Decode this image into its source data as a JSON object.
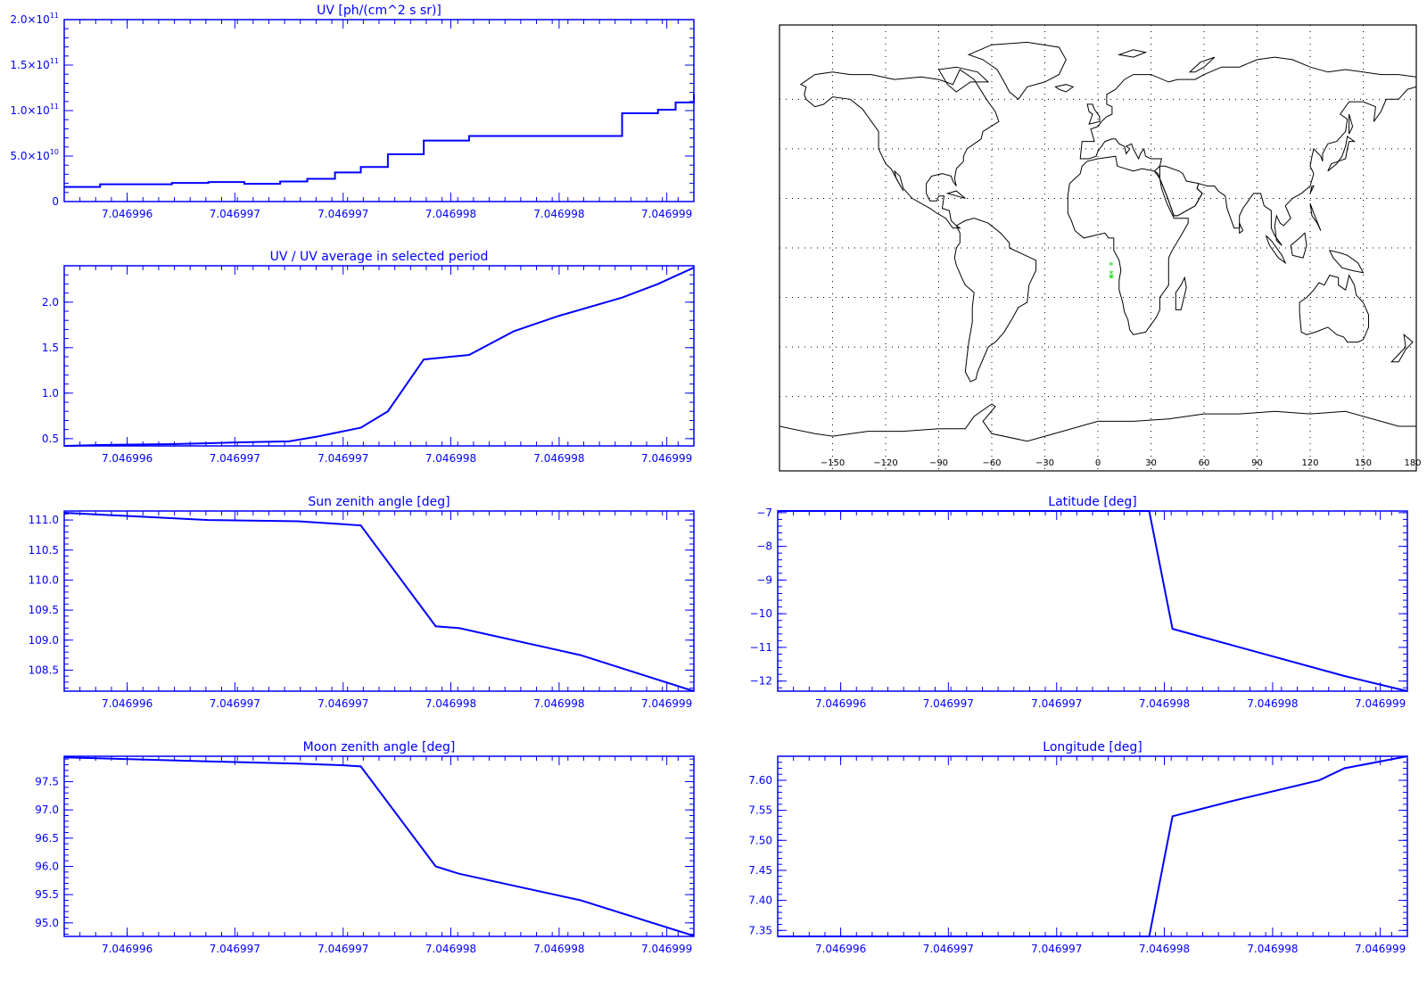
{
  "colors": {
    "plot": "#0000ff",
    "map": "#000000",
    "track": "#00dd00",
    "background": "#ffffff"
  },
  "chart_data": [
    {
      "id": "uv",
      "type": "line",
      "step": true,
      "title": "UV [ph/(cm^2 s sr)]",
      "x_tick_labels": [
        "7.046996",
        "7.046997",
        "7.046997",
        "7.046998",
        "7.046998",
        "7.046999"
      ],
      "y_tick_labels": [
        {
          "value": 0,
          "mantissa": "0",
          "exp": ""
        },
        {
          "value": 50000000000,
          "mantissa": "5.0×10",
          "exp": "10"
        },
        {
          "value": 100000000000,
          "mantissa": "1.0×10",
          "exp": "11"
        },
        {
          "value": 150000000000,
          "mantissa": "1.5×10",
          "exp": "11"
        },
        {
          "value": 200000000000,
          "mantissa": "2.0×10",
          "exp": "11"
        }
      ],
      "ylim": [
        0,
        200000000000
      ],
      "xlim": [
        0,
        1
      ],
      "x": [
        0,
        0.057,
        0.171,
        0.229,
        0.286,
        0.343,
        0.386,
        0.43,
        0.471,
        0.514,
        0.571,
        0.643,
        0.886,
        0.943,
        0.971,
        1
      ],
      "y": [
        16000000000,
        19000000000,
        20500000000,
        21500000000,
        19500000000,
        22000000000,
        25000000000,
        32000000000,
        38000000000,
        52000000000,
        67000000000,
        72000000000,
        97000000000,
        101000000000,
        109000000000,
        118000000000
      ]
    },
    {
      "id": "ratio",
      "type": "line",
      "title": "UV / UV average in selected period",
      "x_tick_labels": [
        "7.046996",
        "7.046997",
        "7.046997",
        "7.046998",
        "7.046998",
        "7.046999"
      ],
      "y_tick_labels": [
        {
          "value": 0.5,
          "mantissa": "0.5",
          "exp": ""
        },
        {
          "value": 1.0,
          "mantissa": "1.0",
          "exp": ""
        },
        {
          "value": 1.5,
          "mantissa": "1.5",
          "exp": ""
        },
        {
          "value": 2.0,
          "mantissa": "2.0",
          "exp": ""
        }
      ],
      "ylim": [
        0.42,
        2.4
      ],
      "xlim": [
        0,
        1
      ],
      "x": [
        0,
        0.057,
        0.171,
        0.229,
        0.286,
        0.357,
        0.4,
        0.471,
        0.514,
        0.571,
        0.643,
        0.714,
        0.786,
        0.886,
        0.943,
        1
      ],
      "y": [
        0.42,
        0.43,
        0.44,
        0.45,
        0.46,
        0.47,
        0.52,
        0.62,
        0.8,
        1.37,
        1.42,
        1.68,
        1.85,
        2.05,
        2.2,
        2.38
      ]
    },
    {
      "id": "sza",
      "type": "line",
      "title": "Sun zenith angle [deg]",
      "x_tick_labels": [
        "7.046996",
        "7.046997",
        "7.046997",
        "7.046998",
        "7.046998",
        "7.046999"
      ],
      "y_tick_labels": [
        {
          "value": 108.5,
          "mantissa": "108.5",
          "exp": ""
        },
        {
          "value": 109.0,
          "mantissa": "109.0",
          "exp": ""
        },
        {
          "value": 109.5,
          "mantissa": "109.5",
          "exp": ""
        },
        {
          "value": 110.0,
          "mantissa": "110.0",
          "exp": ""
        },
        {
          "value": 110.5,
          "mantissa": "110.5",
          "exp": ""
        },
        {
          "value": 111.0,
          "mantissa": "111.0",
          "exp": ""
        }
      ],
      "ylim": [
        108.15,
        111.15
      ],
      "xlim": [
        0,
        1
      ],
      "x": [
        0,
        0.229,
        0.371,
        0.443,
        0.471,
        0.59,
        0.627,
        0.82,
        1
      ],
      "y": [
        111.12,
        111.0,
        110.98,
        110.93,
        110.91,
        109.23,
        109.2,
        108.75,
        108.15
      ]
    },
    {
      "id": "lat",
      "type": "line",
      "title": "Latitude [deg]",
      "x_tick_labels": [
        "7.046996",
        "7.046997",
        "7.046997",
        "7.046998",
        "7.046998",
        "7.046999"
      ],
      "y_tick_labels": [
        {
          "value": -12,
          "mantissa": "−12",
          "exp": ""
        },
        {
          "value": -11,
          "mantissa": "−11",
          "exp": ""
        },
        {
          "value": -10,
          "mantissa": "−10",
          "exp": ""
        },
        {
          "value": -9,
          "mantissa": "−9",
          "exp": ""
        },
        {
          "value": -8,
          "mantissa": "−8",
          "exp": ""
        },
        {
          "value": -7,
          "mantissa": "−7",
          "exp": ""
        }
      ],
      "ylim": [
        -12.3,
        -6.95
      ],
      "xlim": [
        0,
        1
      ],
      "x": [
        0,
        0.59,
        0.627,
        0.9,
        1
      ],
      "y": [
        -6.95,
        -6.95,
        -10.45,
        -11.85,
        -12.3
      ]
    },
    {
      "id": "mza",
      "type": "line",
      "title": "Moon zenith angle [deg]",
      "x_tick_labels": [
        "7.046996",
        "7.046997",
        "7.046997",
        "7.046998",
        "7.046998",
        "7.046999"
      ],
      "y_tick_labels": [
        {
          "value": 95.0,
          "mantissa": "95.0",
          "exp": ""
        },
        {
          "value": 95.5,
          "mantissa": "95.5",
          "exp": ""
        },
        {
          "value": 96.0,
          "mantissa": "96.0",
          "exp": ""
        },
        {
          "value": 96.5,
          "mantissa": "96.5",
          "exp": ""
        },
        {
          "value": 97.0,
          "mantissa": "97.0",
          "exp": ""
        },
        {
          "value": 97.5,
          "mantissa": "97.5",
          "exp": ""
        }
      ],
      "ylim": [
        94.76,
        97.95
      ],
      "xlim": [
        0,
        1
      ],
      "x": [
        0,
        0.229,
        0.371,
        0.443,
        0.471,
        0.59,
        0.627,
        0.82,
        1
      ],
      "y": [
        97.93,
        97.86,
        97.82,
        97.79,
        97.77,
        96.0,
        95.87,
        95.4,
        94.77
      ]
    },
    {
      "id": "lon",
      "type": "line",
      "title": "Longitude [deg]",
      "x_tick_labels": [
        "7.046996",
        "7.046997",
        "7.046997",
        "7.046998",
        "7.046998",
        "7.046999"
      ],
      "y_tick_labels": [
        {
          "value": 7.35,
          "mantissa": "7.35",
          "exp": ""
        },
        {
          "value": 7.4,
          "mantissa": "7.40",
          "exp": ""
        },
        {
          "value": 7.45,
          "mantissa": "7.45",
          "exp": ""
        },
        {
          "value": 7.5,
          "mantissa": "7.50",
          "exp": ""
        },
        {
          "value": 7.55,
          "mantissa": "7.55",
          "exp": ""
        },
        {
          "value": 7.6,
          "mantissa": "7.60",
          "exp": ""
        }
      ],
      "ylim": [
        7.34,
        7.64
      ],
      "xlim": [
        0,
        1
      ],
      "x": [
        0,
        0.59,
        0.627,
        0.72,
        0.86,
        0.9,
        1
      ],
      "y": [
        7.34,
        7.34,
        7.54,
        7.565,
        7.6,
        7.62,
        7.64
      ]
    }
  ],
  "map": {
    "type": "map",
    "projection": "equirectangular",
    "lon_range": [
      -180,
      180
    ],
    "lat_range": [
      -90,
      90
    ],
    "grid": "dotted",
    "lon_tick_labels": [
      "−150",
      "−120",
      "−90",
      "−60",
      "−30",
      "0",
      "30",
      "60",
      "90",
      "120",
      "150",
      "180"
    ],
    "track_marker": "*",
    "track": [
      {
        "lon": 7.46,
        "lat": -6.95
      },
      {
        "lon": 7.54,
        "lat": -10.45
      },
      {
        "lon": 7.6,
        "lat": -11.85
      },
      {
        "lon": 7.64,
        "lat": -12.3
      }
    ]
  }
}
